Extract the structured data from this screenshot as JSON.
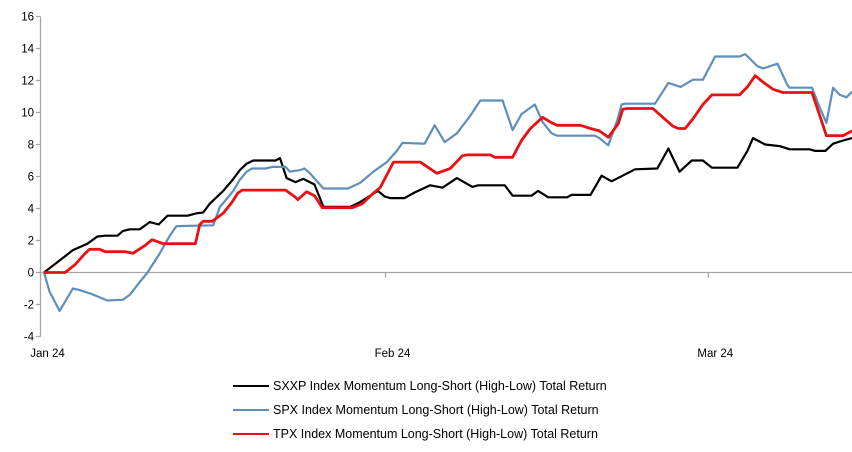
{
  "chart_data": {
    "type": "line",
    "title": "",
    "xlabel": "",
    "ylabel": "",
    "x_unit": "calendar days since first point (Jan 24)",
    "ylim": [
      -4,
      16
    ],
    "y_tick_step": 2,
    "grid": "zero-baseline only",
    "legend_position": "bottom",
    "yaxis_ticks": [
      16,
      14,
      12,
      10,
      8,
      6,
      4,
      2,
      0,
      -2,
      -4
    ],
    "xaxis_ticks": [
      {
        "label": "Jan 24",
        "day": 0
      },
      {
        "label": "Feb 24",
        "day": 31
      },
      {
        "label": "Mar 24",
        "day": 60
      }
    ],
    "series": [
      {
        "name": "SXXP Index Momentum Long-Short (High-Low) Total Return",
        "color": "#000000",
        "points": [
          [
            0,
            0
          ],
          [
            1.4,
            0.75
          ],
          [
            2.6,
            1.4
          ],
          [
            3.9,
            1.8
          ],
          [
            4.8,
            2.25
          ],
          [
            5.5,
            2.3
          ],
          [
            6.6,
            2.3
          ],
          [
            7.1,
            2.6
          ],
          [
            7.7,
            2.7
          ],
          [
            8.6,
            2.7
          ],
          [
            9.5,
            3.15
          ],
          [
            10.3,
            3.0
          ],
          [
            11.1,
            3.55
          ],
          [
            12.9,
            3.55
          ],
          [
            13.7,
            3.7
          ],
          [
            14.3,
            3.75
          ],
          [
            14.9,
            4.3
          ],
          [
            15.5,
            4.7
          ],
          [
            16.1,
            5.1
          ],
          [
            16.9,
            5.75
          ],
          [
            17.6,
            6.4
          ],
          [
            18.2,
            6.8
          ],
          [
            18.8,
            7.0
          ],
          [
            20.8,
            7.0
          ],
          [
            21.2,
            7.15
          ],
          [
            21.8,
            5.9
          ],
          [
            22.6,
            5.65
          ],
          [
            23.3,
            5.85
          ],
          [
            24.3,
            5.5
          ],
          [
            25.1,
            4.1
          ],
          [
            27.5,
            4.1
          ],
          [
            28.4,
            4.4
          ],
          [
            29.3,
            4.8
          ],
          [
            30.0,
            5.1
          ],
          [
            30.6,
            4.75
          ],
          [
            31.1,
            4.65
          ],
          [
            32.4,
            4.65
          ],
          [
            33.3,
            5.0
          ],
          [
            34.7,
            5.45
          ],
          [
            35.8,
            5.3
          ],
          [
            37.1,
            5.9
          ],
          [
            38.5,
            5.35
          ],
          [
            39.0,
            5.45
          ],
          [
            41.4,
            5.45
          ],
          [
            42.1,
            4.8
          ],
          [
            43.8,
            4.8
          ],
          [
            44.4,
            5.1
          ],
          [
            45.3,
            4.7
          ],
          [
            47.0,
            4.7
          ],
          [
            47.4,
            4.85
          ],
          [
            49.1,
            4.85
          ],
          [
            50.1,
            6.05
          ],
          [
            51.0,
            5.7
          ],
          [
            53.1,
            6.45
          ],
          [
            55.1,
            6.5
          ],
          [
            56.1,
            7.75
          ],
          [
            57.1,
            6.3
          ],
          [
            58.2,
            7.0
          ],
          [
            59.2,
            7.0
          ],
          [
            60.0,
            6.55
          ],
          [
            62.3,
            6.55
          ],
          [
            63.2,
            7.6
          ],
          [
            63.7,
            8.4
          ],
          [
            64.8,
            8.0
          ],
          [
            66.1,
            7.9
          ],
          [
            67.0,
            7.7
          ],
          [
            68.8,
            7.7
          ],
          [
            69.3,
            7.6
          ],
          [
            70.2,
            7.6
          ],
          [
            70.9,
            8.05
          ],
          [
            71.8,
            8.25
          ],
          [
            72.6,
            8.4
          ]
        ]
      },
      {
        "name": "SPX Index Momentum Long-Short (High-Low) Total Return",
        "color": "#5E8FBC",
        "points": [
          [
            0,
            0
          ],
          [
            0.5,
            -1.2
          ],
          [
            1.4,
            -2.4
          ],
          [
            2.6,
            -1.0
          ],
          [
            3.2,
            -1.1
          ],
          [
            4.3,
            -1.35
          ],
          [
            5.7,
            -1.75
          ],
          [
            7.1,
            -1.7
          ],
          [
            7.7,
            -1.4
          ],
          [
            8.6,
            -0.6
          ],
          [
            9.3,
            0.0
          ],
          [
            10.4,
            1.2
          ],
          [
            11.3,
            2.3
          ],
          [
            11.9,
            2.9
          ],
          [
            15.2,
            2.95
          ],
          [
            15.8,
            4.1
          ],
          [
            16.3,
            4.5
          ],
          [
            17.0,
            5.1
          ],
          [
            17.6,
            5.8
          ],
          [
            18.2,
            6.3
          ],
          [
            18.7,
            6.5
          ],
          [
            19.9,
            6.5
          ],
          [
            20.5,
            6.6
          ],
          [
            21.7,
            6.6
          ],
          [
            22.1,
            6.3
          ],
          [
            23.0,
            6.4
          ],
          [
            23.4,
            6.5
          ],
          [
            23.9,
            6.2
          ],
          [
            25.1,
            5.25
          ],
          [
            27.3,
            5.25
          ],
          [
            28.4,
            5.6
          ],
          [
            29.6,
            6.3
          ],
          [
            30.8,
            6.9
          ],
          [
            31.7,
            7.6
          ],
          [
            32.2,
            8.1
          ],
          [
            34.2,
            8.05
          ],
          [
            35.1,
            9.2
          ],
          [
            36.0,
            8.15
          ],
          [
            37.1,
            8.7
          ],
          [
            38.3,
            9.8
          ],
          [
            39.2,
            10.75
          ],
          [
            41.2,
            10.75
          ],
          [
            42.1,
            8.9
          ],
          [
            42.9,
            9.9
          ],
          [
            44.1,
            10.5
          ],
          [
            44.8,
            9.4
          ],
          [
            45.6,
            8.7
          ],
          [
            46.1,
            8.55
          ],
          [
            49.5,
            8.55
          ],
          [
            49.9,
            8.4
          ],
          [
            50.7,
            7.95
          ],
          [
            51.5,
            9.5
          ],
          [
            51.9,
            10.5
          ],
          [
            52.2,
            10.55
          ],
          [
            54.9,
            10.55
          ],
          [
            56.1,
            11.85
          ],
          [
            57.2,
            11.6
          ],
          [
            58.3,
            12.05
          ],
          [
            59.2,
            12.05
          ],
          [
            60.0,
            13.1
          ],
          [
            60.3,
            13.5
          ],
          [
            62.5,
            13.5
          ],
          [
            63.0,
            13.65
          ],
          [
            64.1,
            12.9
          ],
          [
            64.6,
            12.75
          ],
          [
            65.9,
            13.05
          ],
          [
            66.8,
            11.7
          ],
          [
            67.0,
            11.55
          ],
          [
            69.0,
            11.55
          ],
          [
            69.7,
            10.3
          ],
          [
            70.3,
            9.35
          ],
          [
            70.9,
            11.55
          ],
          [
            71.5,
            11.1
          ],
          [
            72.1,
            10.95
          ],
          [
            72.6,
            11.3
          ]
        ]
      },
      {
        "name": "TPX Index Momentum Long-Short (High-Low) Total Return",
        "color": "#E81111",
        "points": [
          [
            0,
            0
          ],
          [
            1.9,
            0
          ],
          [
            2.8,
            0.5
          ],
          [
            3.7,
            1.2
          ],
          [
            4.1,
            1.45
          ],
          [
            5.0,
            1.45
          ],
          [
            5.5,
            1.3
          ],
          [
            7.3,
            1.3
          ],
          [
            8.0,
            1.2
          ],
          [
            9.1,
            1.7
          ],
          [
            9.7,
            2.05
          ],
          [
            10.7,
            1.8
          ],
          [
            13.6,
            1.8
          ],
          [
            14.0,
            3.0
          ],
          [
            14.3,
            3.2
          ],
          [
            15.1,
            3.2
          ],
          [
            16.1,
            3.7
          ],
          [
            16.9,
            4.4
          ],
          [
            17.4,
            4.95
          ],
          [
            17.8,
            5.15
          ],
          [
            21.7,
            5.15
          ],
          [
            22.6,
            4.7
          ],
          [
            22.8,
            4.55
          ],
          [
            23.6,
            5.05
          ],
          [
            24.3,
            4.8
          ],
          [
            25.0,
            4.05
          ],
          [
            27.7,
            4.05
          ],
          [
            28.6,
            4.3
          ],
          [
            29.5,
            4.9
          ],
          [
            30.2,
            5.3
          ],
          [
            31.4,
            6.9
          ],
          [
            33.8,
            6.9
          ],
          [
            35.3,
            6.2
          ],
          [
            36.5,
            6.5
          ],
          [
            37.6,
            7.3
          ],
          [
            38.0,
            7.35
          ],
          [
            40.1,
            7.35
          ],
          [
            40.5,
            7.2
          ],
          [
            42.1,
            7.2
          ],
          [
            42.9,
            8.25
          ],
          [
            43.7,
            9.0
          ],
          [
            44.8,
            9.7
          ],
          [
            45.5,
            9.4
          ],
          [
            46.1,
            9.2
          ],
          [
            48.2,
            9.2
          ],
          [
            49.1,
            9.0
          ],
          [
            49.9,
            8.85
          ],
          [
            50.7,
            8.45
          ],
          [
            51.6,
            9.3
          ],
          [
            52.0,
            10.2
          ],
          [
            52.4,
            10.25
          ],
          [
            54.7,
            10.25
          ],
          [
            55.6,
            9.7
          ],
          [
            56.5,
            9.15
          ],
          [
            57.0,
            9.0
          ],
          [
            57.6,
            9.0
          ],
          [
            58.3,
            9.6
          ],
          [
            59.2,
            10.5
          ],
          [
            60.0,
            11.1
          ],
          [
            62.5,
            11.1
          ],
          [
            63.2,
            11.6
          ],
          [
            63.9,
            12.3
          ],
          [
            64.6,
            11.9
          ],
          [
            65.5,
            11.45
          ],
          [
            66.4,
            11.25
          ],
          [
            69.0,
            11.25
          ],
          [
            69.7,
            9.8
          ],
          [
            70.3,
            8.55
          ],
          [
            71.8,
            8.55
          ],
          [
            72.6,
            8.85
          ]
        ]
      }
    ]
  },
  "style_colors": {
    "axis": "#A6A6A6",
    "tick": "#A6A6A6",
    "label_text": "#000000",
    "background": "#FFFFFF"
  }
}
